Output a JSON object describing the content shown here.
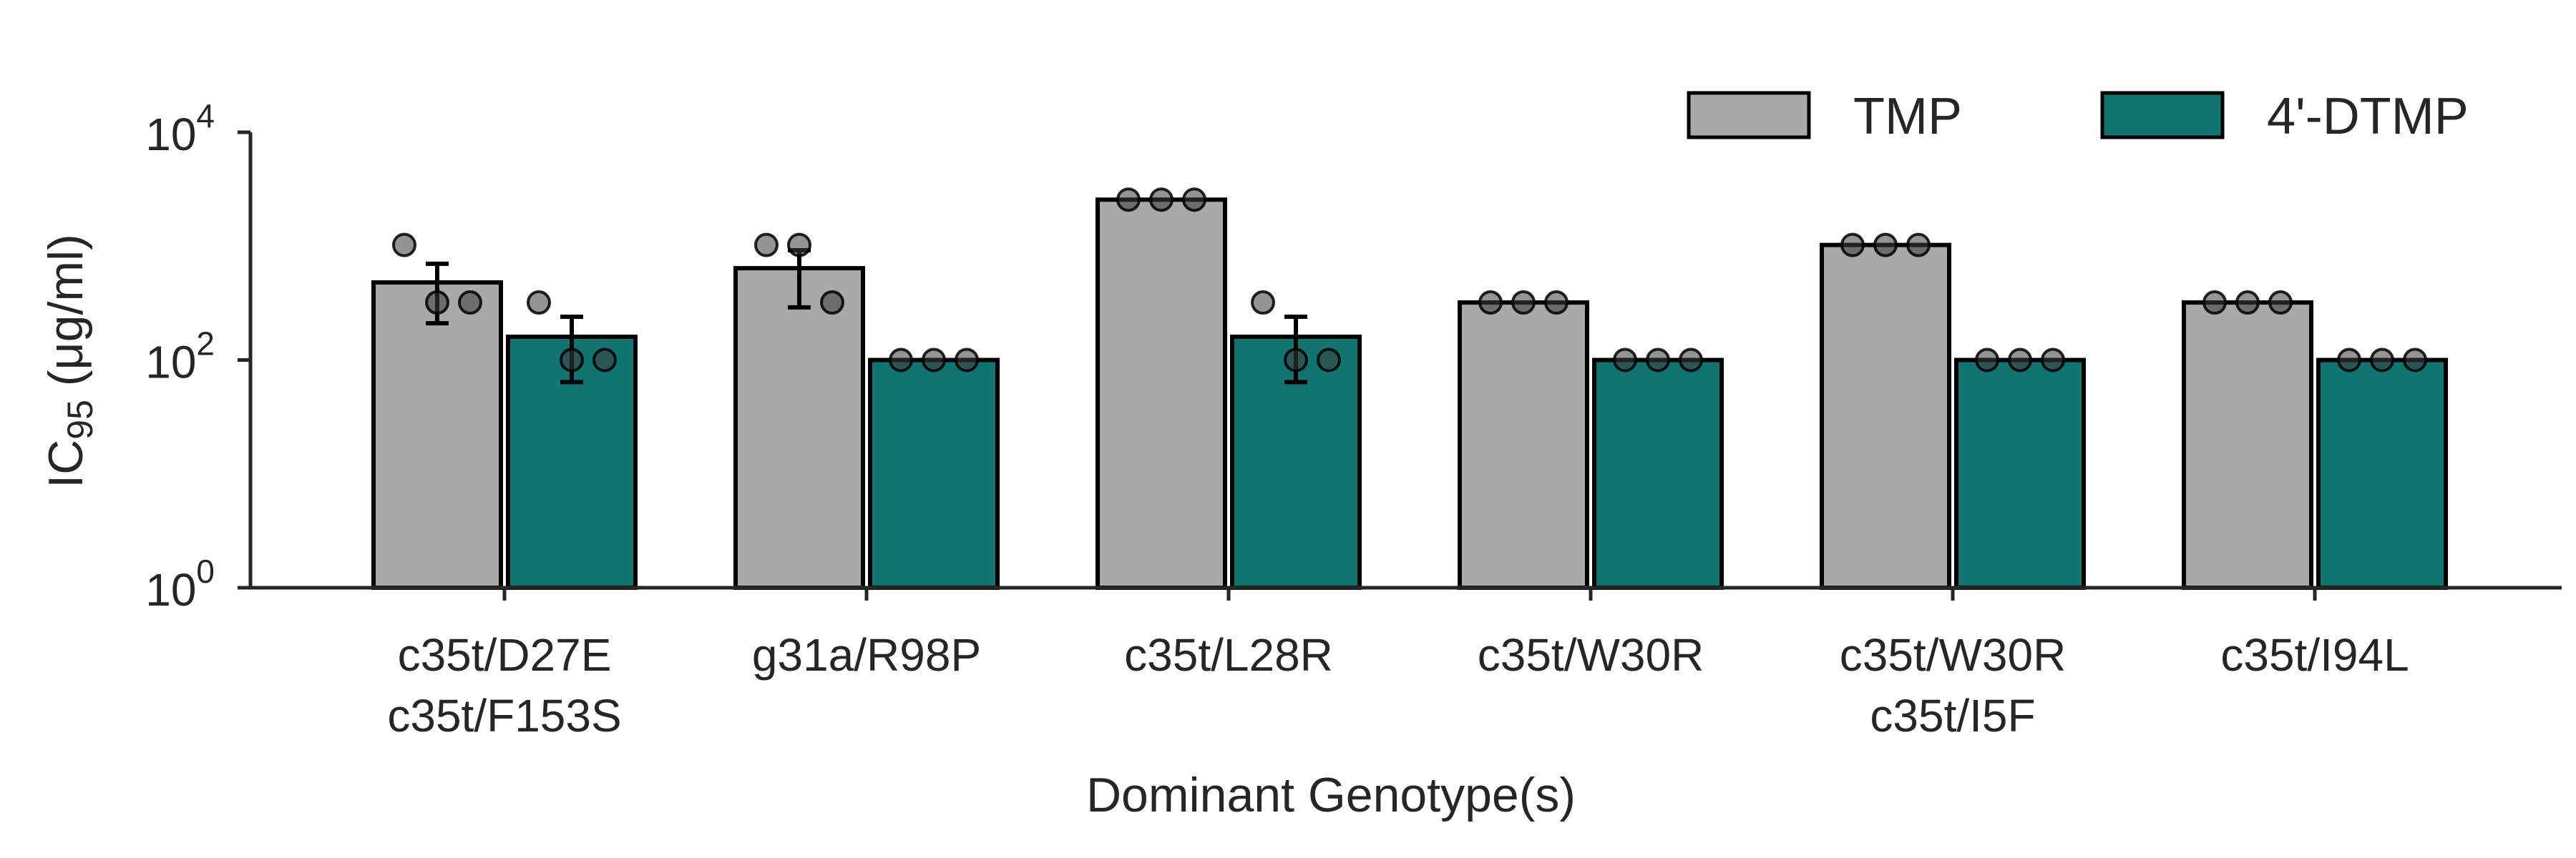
{
  "chart_data": {
    "type": "bar",
    "yscale": "log",
    "ylim": [
      1,
      10000
    ],
    "yticks": [
      {
        "value": 1,
        "base": "10",
        "exp": "0"
      },
      {
        "value": 100,
        "base": "10",
        "exp": "2"
      },
      {
        "value": 10000,
        "base": "10",
        "exp": "4"
      }
    ],
    "ylabel": {
      "main": "IC",
      "sub": "95",
      "rest": " (μg/ml)"
    },
    "xlabel": "Dominant Genotype(s)",
    "legend_position": "top-right",
    "categories": [
      {
        "lines": [
          "c35t/D27E",
          "c35t/F153S"
        ]
      },
      {
        "lines": [
          "g31a/R98P"
        ]
      },
      {
        "lines": [
          "c35t/L28R"
        ]
      },
      {
        "lines": [
          "c35t/W30R"
        ]
      },
      {
        "lines": [
          "c35t/W30R",
          "c35t/I5F"
        ]
      },
      {
        "lines": [
          "c35t/I94L"
        ]
      }
    ],
    "series": [
      {
        "name": "TMP",
        "color": "#a9a9a9",
        "values": [
          480,
          640,
          2560,
          320,
          1024,
          320
        ],
        "errors": [
          [
            210,
            700
          ],
          [
            290,
            920
          ],
          [
            2560,
            2560
          ],
          [
            320,
            320
          ],
          [
            1024,
            1024
          ],
          [
            320,
            320
          ]
        ],
        "points": [
          [
            1024,
            320,
            320
          ],
          [
            1024,
            1024,
            320
          ],
          [
            2560,
            2560,
            2560
          ],
          [
            320,
            320,
            320
          ],
          [
            1024,
            1024,
            1024
          ],
          [
            320,
            320,
            320
          ]
        ]
      },
      {
        "name": "4'-DTMP",
        "color": "#137370",
        "values": [
          160,
          100,
          160,
          100,
          100,
          100
        ],
        "errors": [
          [
            64,
            240
          ],
          [
            100,
            100
          ],
          [
            64,
            240
          ],
          [
            100,
            100
          ],
          [
            100,
            100
          ],
          [
            100,
            100
          ]
        ],
        "points": [
          [
            320,
            100,
            100
          ],
          [
            100,
            100,
            100
          ],
          [
            320,
            100,
            100
          ],
          [
            100,
            100,
            100
          ],
          [
            100,
            100,
            100
          ],
          [
            100,
            100,
            100
          ]
        ]
      }
    ],
    "grid": false
  }
}
